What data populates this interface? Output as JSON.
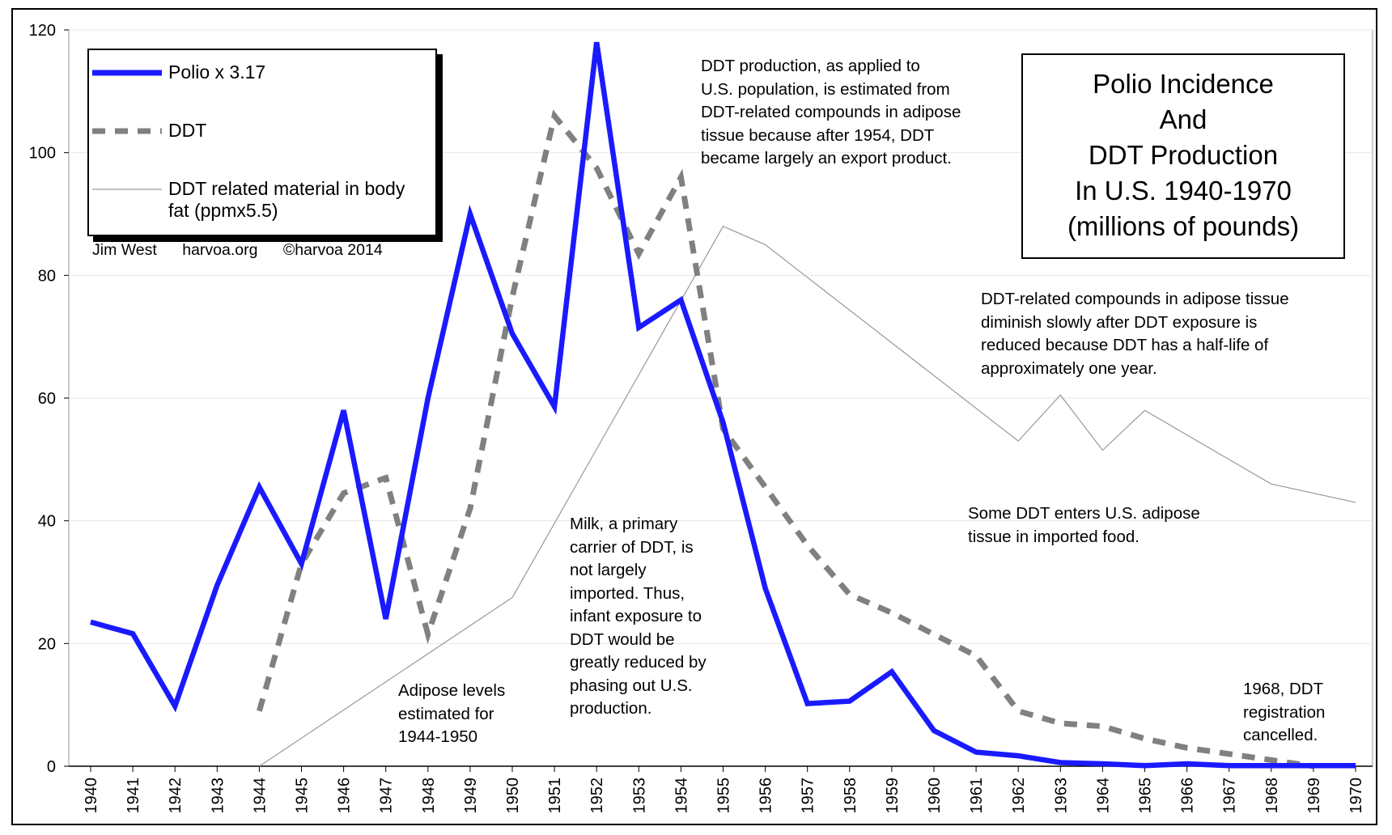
{
  "chart_data": {
    "type": "line",
    "title_lines": [
      "Polio Incidence",
      "And",
      "DDT Production",
      "In U.S. 1940-1970",
      "(millions of pounds)"
    ],
    "xlabel": "",
    "ylabel": "",
    "ylim": [
      0,
      120
    ],
    "yticks": [
      0,
      20,
      40,
      60,
      80,
      100,
      120
    ],
    "categories": [
      "1940",
      "1941",
      "1942",
      "1943",
      "1944",
      "1945",
      "1946",
      "1947",
      "1948",
      "1949",
      "1950",
      "1951",
      "1952",
      "1953",
      "1954",
      "1955",
      "1956",
      "1957",
      "1958",
      "1959",
      "1960",
      "1961",
      "1962",
      "1963",
      "1964",
      "1965",
      "1966",
      "1967",
      "1968",
      "1969",
      "1970"
    ],
    "grid": "horizontal",
    "legend_position": "top-left",
    "series": [
      {
        "name": "Polio x 3.17",
        "color": "#1a1aff",
        "style": "solid-thick",
        "values": [
          23.5,
          21.6,
          9.8,
          29.5,
          45.5,
          33,
          58,
          24,
          60,
          90,
          70.5,
          58.6,
          118,
          71.5,
          76,
          56,
          29,
          10.2,
          10.6,
          15.4,
          5.8,
          2.3,
          1.7,
          0.6,
          0.4,
          0.1,
          0.4,
          0.1,
          0.1,
          0.1,
          0.1
        ]
      },
      {
        "name": "DDT",
        "color": "#808080",
        "style": "dashed",
        "values": [
          null,
          null,
          null,
          null,
          9,
          33,
          44.5,
          47,
          21.5,
          42,
          76.5,
          106,
          97.5,
          83.5,
          96,
          55,
          45.5,
          36,
          28,
          25,
          21.5,
          18,
          9,
          7,
          6.5,
          4.5,
          3,
          2,
          1,
          0,
          null
        ]
      },
      {
        "name": "DDT related material in body fat (ppmx5.5)",
        "color": "#999999",
        "style": "thin",
        "values": [
          null,
          null,
          null,
          null,
          0,
          null,
          null,
          null,
          null,
          null,
          27.5,
          null,
          null,
          null,
          null,
          88,
          85,
          null,
          null,
          null,
          null,
          null,
          53,
          60.5,
          51.5,
          58,
          null,
          null,
          46,
          null,
          43
        ]
      }
    ]
  },
  "legend": {
    "polio_label": "Polio x 3.17",
    "ddt_label": "DDT",
    "bodyfat_label_line1": "DDT related material in body",
    "bodyfat_label_line2": "fat (ppmx5.5)"
  },
  "credit": {
    "author": "Jim West",
    "site": "harvoa.org",
    "copyright": "©harvoa 2014"
  },
  "annotations": {
    "ddt_production": "DDT production, as applied to\nU.S. population, is estimated from\nDDT-related compounds in adipose\ntissue because after 1954, DDT\nbecame largely an export product.",
    "adipose_diminish": "DDT-related compounds in adipose tissue\ndiminish slowly after DDT exposure is\nreduced because DDT has a half-life of\napproximately one year.",
    "imported_food": "Some DDT enters U.S. adipose\ntissue in imported food.",
    "milk": "Milk, a primary\ncarrier of DDT, is\nnot largely\nimported. Thus,\ninfant exposure to\nDDT would be\ngreatly reduced by\nphasing out U.S.\nproduction.",
    "adipose_estimated": "Adipose levels\nestimated for\n1944-1950",
    "registration": "1968, DDT\nregistration\ncancelled."
  }
}
